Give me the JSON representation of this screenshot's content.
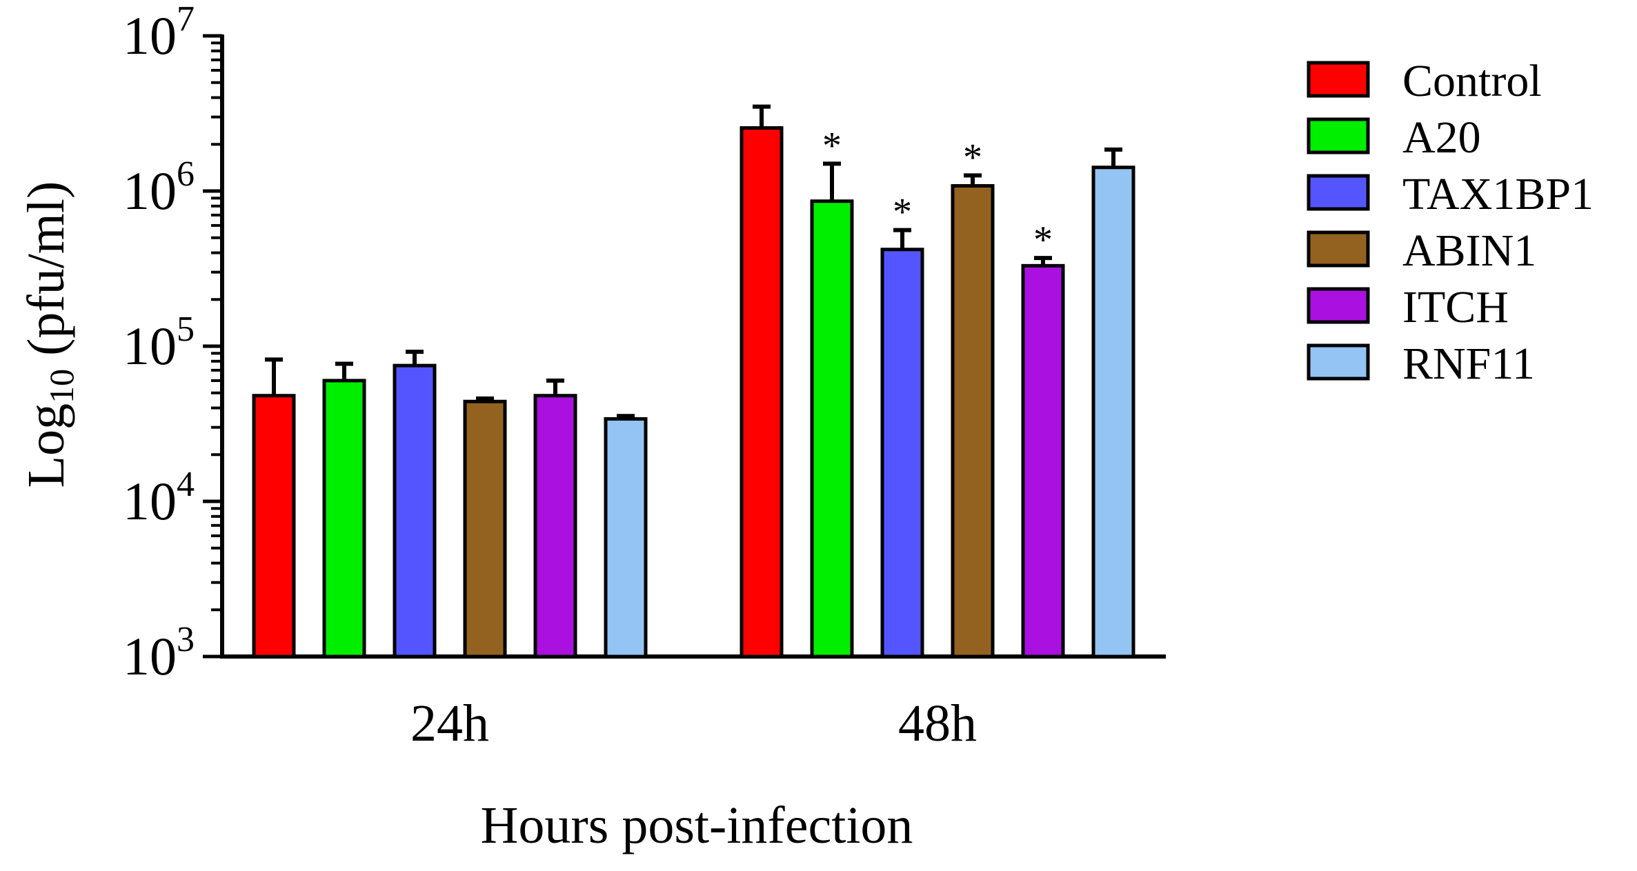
{
  "chart_data": {
    "type": "bar",
    "title": "",
    "xlabel": "Hours post-infection",
    "ylabel": {
      "prefix": "Log",
      "subscript": "10",
      "suffix": " (pfu/ml)"
    },
    "y_scale": "log",
    "ylim": [
      1000,
      10000000
    ],
    "y_ticks": [
      {
        "value": 1000,
        "base": "10",
        "exp": "3"
      },
      {
        "value": 10000,
        "base": "10",
        "exp": "4"
      },
      {
        "value": 100000,
        "base": "10",
        "exp": "5"
      },
      {
        "value": 1000000,
        "base": "10",
        "exp": "6"
      },
      {
        "value": 10000000,
        "base": "10",
        "exp": "7"
      }
    ],
    "categories": [
      "24h",
      "48h"
    ],
    "legend_position": "right",
    "significance_marker": "*",
    "series": [
      {
        "name": "Control",
        "color": "#ff0000",
        "values": [
          48000,
          2550000
        ],
        "errors": [
          82000,
          3500000
        ],
        "significant": [
          false,
          false
        ]
      },
      {
        "name": "A20",
        "color": "#00ee00",
        "values": [
          60000,
          860000
        ],
        "errors": [
          77000,
          1500000
        ],
        "significant": [
          false,
          true
        ]
      },
      {
        "name": "TAX1BP1",
        "color": "#5555ff",
        "values": [
          75000,
          420000
        ],
        "errors": [
          92000,
          560000
        ],
        "significant": [
          false,
          true
        ]
      },
      {
        "name": "ABIN1",
        "color": "#946220",
        "values": [
          44000,
          1080000
        ],
        "errors": [
          46000,
          1260000
        ],
        "significant": [
          false,
          true
        ]
      },
      {
        "name": "ITCH",
        "color": "#aa11e0",
        "values": [
          48000,
          330000
        ],
        "errors": [
          60000,
          370000
        ],
        "significant": [
          false,
          true
        ]
      },
      {
        "name": "RNF11",
        "color": "#94c4f4",
        "values": [
          34000,
          1420000
        ],
        "errors": [
          35500,
          1850000
        ],
        "significant": [
          false,
          false
        ]
      }
    ]
  }
}
